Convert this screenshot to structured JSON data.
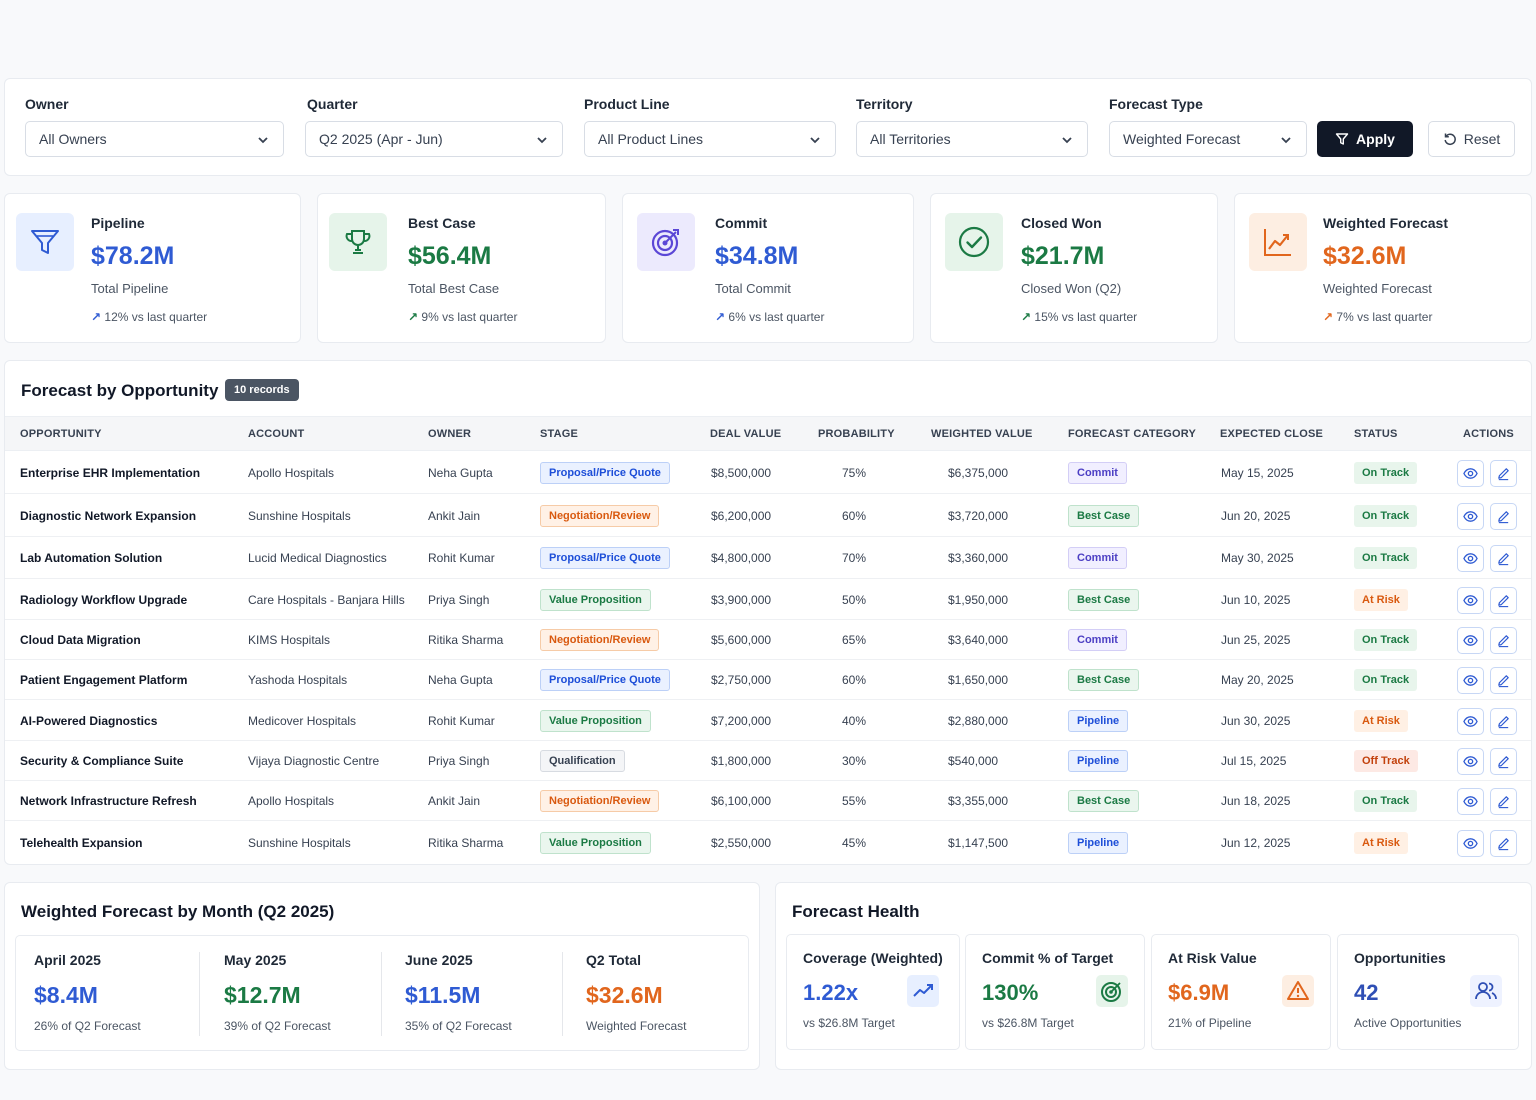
{
  "filters": {
    "owner": {
      "label": "Owner",
      "value": "All Owners"
    },
    "quarter": {
      "label": "Quarter",
      "value": "Q2 2025 (Apr - Jun)"
    },
    "product_line": {
      "label": "Product Line",
      "value": "All Product Lines"
    },
    "territory": {
      "label": "Territory",
      "value": "All Territories"
    },
    "forecast_type": {
      "label": "Forecast Type",
      "value": "Weighted Forecast"
    },
    "apply_label": "Apply",
    "reset_label": "Reset"
  },
  "kpis": [
    {
      "title": "Pipeline",
      "value": "$78.2M",
      "sub": "Total Pipeline",
      "delta": "12% vs last quarter",
      "color": "#2f5bd3",
      "icon": "funnel-icon"
    },
    {
      "title": "Best Case",
      "value": "$56.4M",
      "sub": "Total Best Case",
      "delta": "9% vs last quarter",
      "color": "#1b7a44",
      "icon": "trophy-icon"
    },
    {
      "title": "Commit",
      "value": "$34.8M",
      "sub": "Total Commit",
      "delta": "6% vs last quarter",
      "color": "#2f5bd3",
      "icon": "target-icon"
    },
    {
      "title": "Closed Won",
      "value": "$21.7M",
      "sub": "Closed Won (Q2)",
      "delta": "15% vs last quarter",
      "color": "#1b7a44",
      "icon": "check-circle-icon"
    },
    {
      "title": "Weighted Forecast",
      "value": "$32.6M",
      "sub": "Weighted Forecast",
      "delta": "7% vs last quarter",
      "color": "#e1661d",
      "icon": "trend-chart-icon"
    }
  ],
  "table": {
    "title": "Forecast by Opportunity",
    "record_badge": "10 records",
    "columns": [
      "OPPORTUNITY",
      "ACCOUNT",
      "OWNER",
      "STAGE",
      "DEAL VALUE",
      "PROBABILITY",
      "WEIGHTED VALUE",
      "FORECAST CATEGORY",
      "EXPECTED CLOSE",
      "STATUS",
      "ACTIONS"
    ],
    "rows": [
      {
        "opportunity": "Enterprise EHR Implementation",
        "account": "Apollo Hospitals",
        "owner": "Neha Gupta",
        "stage": "Proposal/Price Quote",
        "deal_value": "$8,500,000",
        "probability": "75%",
        "weighted_value": "$6,375,000",
        "category": "Commit",
        "close": "May 15, 2025",
        "status": "On Track"
      },
      {
        "opportunity": "Diagnostic Network Expansion",
        "account": "Sunshine Hospitals",
        "owner": "Ankit Jain",
        "stage": "Negotiation/Review",
        "deal_value": "$6,200,000",
        "probability": "60%",
        "weighted_value": "$3,720,000",
        "category": "Best Case",
        "close": "Jun 20, 2025",
        "status": "On Track"
      },
      {
        "opportunity": "Lab Automation Solution",
        "account": "Lucid Medical Diagnostics",
        "owner": "Rohit Kumar",
        "stage": "Proposal/Price Quote",
        "deal_value": "$4,800,000",
        "probability": "70%",
        "weighted_value": "$3,360,000",
        "category": "Commit",
        "close": "May 30, 2025",
        "status": "On Track"
      },
      {
        "opportunity": "Radiology Workflow Upgrade",
        "account": "Care Hospitals - Banjara Hills",
        "owner": "Priya Singh",
        "stage": "Value Proposition",
        "deal_value": "$3,900,000",
        "probability": "50%",
        "weighted_value": "$1,950,000",
        "category": "Best Case",
        "close": "Jun 10, 2025",
        "status": "At Risk"
      },
      {
        "opportunity": "Cloud Data Migration",
        "account": "KIMS Hospitals",
        "owner": "Ritika Sharma",
        "stage": "Negotiation/Review",
        "deal_value": "$5,600,000",
        "probability": "65%",
        "weighted_value": "$3,640,000",
        "category": "Commit",
        "close": "Jun 25, 2025",
        "status": "On Track"
      },
      {
        "opportunity": "Patient Engagement Platform",
        "account": "Yashoda Hospitals",
        "owner": "Neha Gupta",
        "stage": "Proposal/Price Quote",
        "deal_value": "$2,750,000",
        "probability": "60%",
        "weighted_value": "$1,650,000",
        "category": "Best Case",
        "close": "May 20, 2025",
        "status": "On Track"
      },
      {
        "opportunity": "AI-Powered Diagnostics",
        "account": "Medicover Hospitals",
        "owner": "Rohit Kumar",
        "stage": "Value Proposition",
        "deal_value": "$7,200,000",
        "probability": "40%",
        "weighted_value": "$2,880,000",
        "category": "Pipeline",
        "close": "Jun 30, 2025",
        "status": "At Risk"
      },
      {
        "opportunity": "Security & Compliance Suite",
        "account": "Vijaya Diagnostic Centre",
        "owner": "Priya Singh",
        "stage": "Qualification",
        "deal_value": "$1,800,000",
        "probability": "30%",
        "weighted_value": "$540,000",
        "category": "Pipeline",
        "close": "Jul 15, 2025",
        "status": "Off Track"
      },
      {
        "opportunity": "Network Infrastructure Refresh",
        "account": "Apollo Hospitals",
        "owner": "Ankit Jain",
        "stage": "Negotiation/Review",
        "deal_value": "$6,100,000",
        "probability": "55%",
        "weighted_value": "$3,355,000",
        "category": "Best Case",
        "close": "Jun 18, 2025",
        "status": "On Track"
      },
      {
        "opportunity": "Telehealth Expansion",
        "account": "Sunshine Hospitals",
        "owner": "Ritika Sharma",
        "stage": "Value Proposition",
        "deal_value": "$2,550,000",
        "probability": "45%",
        "weighted_value": "$1,147,500",
        "category": "Pipeline",
        "close": "Jun 12, 2025",
        "status": "At Risk"
      }
    ]
  },
  "monthly": {
    "title": "Weighted Forecast by Month (Q2 2025)",
    "items": [
      {
        "label": "April 2025",
        "value": "$8.4M",
        "sub": "26% of Q2 Forecast",
        "color": "#2f5bd3"
      },
      {
        "label": "May 2025",
        "value": "$12.7M",
        "sub": "39% of Q2 Forecast",
        "color": "#1b7a44"
      },
      {
        "label": "June 2025",
        "value": "$11.5M",
        "sub": "35% of Q2 Forecast",
        "color": "#2f5bd3"
      },
      {
        "label": "Q2 Total",
        "value": "$32.6M",
        "sub": "Weighted Forecast",
        "color": "#e1661d"
      }
    ]
  },
  "health": {
    "title": "Forecast Health",
    "items": [
      {
        "label": "Coverage (Weighted)",
        "value": "1.22x",
        "sub": "vs $26.8M Target",
        "color": "#2f5bd3",
        "icon": "trend-up-icon"
      },
      {
        "label": "Commit % of Target",
        "value": "130%",
        "sub": "vs $26.8M Target",
        "color": "#1b7a44",
        "icon": "target-icon"
      },
      {
        "label": "At Risk Value",
        "value": "$6.9M",
        "sub": "21% of Pipeline",
        "color": "#e1661d",
        "icon": "warning-icon"
      },
      {
        "label": "Opportunities",
        "value": "42",
        "sub": "Active Opportunities",
        "color": "#2f4fb5",
        "icon": "users-icon"
      }
    ]
  }
}
